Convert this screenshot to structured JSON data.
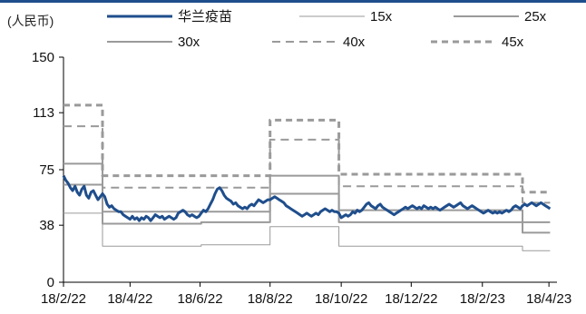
{
  "header": {
    "unit_label": "(人民币)"
  },
  "chart_data": {
    "type": "line",
    "ylabel": "(人民币)",
    "ylim": [
      0,
      150
    ],
    "yticks": [
      0,
      38,
      75,
      113,
      150
    ],
    "x_tick_labels": [
      "18/2/22",
      "18/4/22",
      "18/6/22",
      "18/8/22",
      "18/10/22",
      "18/12/22",
      "18/2/23",
      "18/4/23"
    ],
    "x_tick_days": [
      0,
      58,
      119,
      180,
      242,
      303,
      365,
      423
    ],
    "x_domain": [
      0,
      430
    ],
    "legend_position": "top",
    "series": [
      {
        "name": "华兰疫苗",
        "color": "#1f4e8c",
        "style": "solid",
        "width": 3,
        "points": [
          [
            0,
            71
          ],
          [
            2,
            68
          ],
          [
            4,
            66
          ],
          [
            6,
            63
          ],
          [
            8,
            61
          ],
          [
            10,
            64
          ],
          [
            12,
            60
          ],
          [
            14,
            58
          ],
          [
            16,
            62
          ],
          [
            18,
            64
          ],
          [
            20,
            58
          ],
          [
            22,
            56
          ],
          [
            24,
            60
          ],
          [
            26,
            61
          ],
          [
            28,
            58
          ],
          [
            30,
            55
          ],
          [
            32,
            57
          ],
          [
            34,
            59
          ],
          [
            36,
            57
          ],
          [
            38,
            52
          ],
          [
            40,
            50
          ],
          [
            42,
            51
          ],
          [
            44,
            49
          ],
          [
            46,
            48
          ],
          [
            48,
            47
          ],
          [
            50,
            47
          ],
          [
            52,
            45
          ],
          [
            54,
            44
          ],
          [
            56,
            43
          ],
          [
            58,
            42
          ],
          [
            60,
            44
          ],
          [
            62,
            42
          ],
          [
            64,
            43
          ],
          [
            66,
            41
          ],
          [
            68,
            43
          ],
          [
            70,
            42
          ],
          [
            72,
            44
          ],
          [
            74,
            43
          ],
          [
            76,
            41
          ],
          [
            78,
            43
          ],
          [
            80,
            45
          ],
          [
            82,
            44
          ],
          [
            84,
            43
          ],
          [
            86,
            44
          ],
          [
            88,
            42
          ],
          [
            90,
            43
          ],
          [
            92,
            44
          ],
          [
            94,
            43
          ],
          [
            96,
            42
          ],
          [
            98,
            43
          ],
          [
            100,
            46
          ],
          [
            102,
            47
          ],
          [
            104,
            48
          ],
          [
            106,
            47
          ],
          [
            108,
            45
          ],
          [
            110,
            44
          ],
          [
            112,
            45
          ],
          [
            114,
            44
          ],
          [
            116,
            43
          ],
          [
            118,
            44
          ],
          [
            120,
            46
          ],
          [
            122,
            48
          ],
          [
            124,
            47
          ],
          [
            126,
            49
          ],
          [
            128,
            52
          ],
          [
            130,
            55
          ],
          [
            132,
            59
          ],
          [
            134,
            62
          ],
          [
            136,
            63
          ],
          [
            138,
            61
          ],
          [
            140,
            58
          ],
          [
            142,
            56
          ],
          [
            144,
            55
          ],
          [
            146,
            54
          ],
          [
            148,
            52
          ],
          [
            150,
            53
          ],
          [
            152,
            51
          ],
          [
            154,
            50
          ],
          [
            156,
            49
          ],
          [
            158,
            50
          ],
          [
            160,
            49
          ],
          [
            162,
            51
          ],
          [
            164,
            52
          ],
          [
            166,
            51
          ],
          [
            168,
            53
          ],
          [
            170,
            55
          ],
          [
            172,
            54
          ],
          [
            174,
            53
          ],
          [
            176,
            54
          ],
          [
            178,
            55
          ],
          [
            180,
            55
          ],
          [
            182,
            56
          ],
          [
            184,
            57
          ],
          [
            186,
            56
          ],
          [
            188,
            55
          ],
          [
            190,
            54
          ],
          [
            192,
            53
          ],
          [
            194,
            51
          ],
          [
            196,
            50
          ],
          [
            198,
            49
          ],
          [
            200,
            48
          ],
          [
            202,
            47
          ],
          [
            204,
            46
          ],
          [
            206,
            45
          ],
          [
            208,
            44
          ],
          [
            210,
            45
          ],
          [
            212,
            46
          ],
          [
            214,
            45
          ],
          [
            216,
            44
          ],
          [
            218,
            45
          ],
          [
            220,
            46
          ],
          [
            222,
            45
          ],
          [
            224,
            47
          ],
          [
            226,
            48
          ],
          [
            228,
            49
          ],
          [
            230,
            48
          ],
          [
            232,
            47
          ],
          [
            234,
            48
          ],
          [
            236,
            47
          ],
          [
            238,
            47
          ],
          [
            240,
            46
          ],
          [
            242,
            43
          ],
          [
            244,
            44
          ],
          [
            246,
            45
          ],
          [
            248,
            44
          ],
          [
            250,
            45
          ],
          [
            252,
            47
          ],
          [
            254,
            46
          ],
          [
            256,
            48
          ],
          [
            258,
            47
          ],
          [
            260,
            48
          ],
          [
            262,
            50
          ],
          [
            264,
            52
          ],
          [
            266,
            53
          ],
          [
            268,
            51
          ],
          [
            270,
            50
          ],
          [
            272,
            49
          ],
          [
            274,
            51
          ],
          [
            276,
            52
          ],
          [
            278,
            50
          ],
          [
            280,
            49
          ],
          [
            282,
            48
          ],
          [
            284,
            47
          ],
          [
            286,
            46
          ],
          [
            288,
            45
          ],
          [
            290,
            46
          ],
          [
            292,
            47
          ],
          [
            294,
            48
          ],
          [
            296,
            49
          ],
          [
            298,
            50
          ],
          [
            300,
            49
          ],
          [
            302,
            50
          ],
          [
            304,
            51
          ],
          [
            306,
            50
          ],
          [
            308,
            49
          ],
          [
            310,
            50
          ],
          [
            312,
            49
          ],
          [
            314,
            51
          ],
          [
            316,
            50
          ],
          [
            318,
            49
          ],
          [
            320,
            50
          ],
          [
            322,
            49
          ],
          [
            324,
            50
          ],
          [
            326,
            49
          ],
          [
            328,
            48
          ],
          [
            330,
            49
          ],
          [
            332,
            50
          ],
          [
            334,
            51
          ],
          [
            336,
            52
          ],
          [
            338,
            51
          ],
          [
            340,
            50
          ],
          [
            342,
            51
          ],
          [
            344,
            52
          ],
          [
            346,
            53
          ],
          [
            348,
            51
          ],
          [
            350,
            50
          ],
          [
            352,
            49
          ],
          [
            354,
            50
          ],
          [
            356,
            51
          ],
          [
            358,
            50
          ],
          [
            360,
            49
          ],
          [
            362,
            48
          ],
          [
            364,
            47
          ],
          [
            366,
            46
          ],
          [
            368,
            47
          ],
          [
            370,
            48
          ],
          [
            372,
            47
          ],
          [
            374,
            46
          ],
          [
            376,
            47
          ],
          [
            378,
            46
          ],
          [
            380,
            47
          ],
          [
            382,
            46
          ],
          [
            384,
            47
          ],
          [
            386,
            48
          ],
          [
            388,
            47
          ],
          [
            390,
            48
          ],
          [
            392,
            50
          ],
          [
            394,
            51
          ],
          [
            396,
            50
          ],
          [
            398,
            49
          ],
          [
            400,
            51
          ],
          [
            402,
            52
          ],
          [
            404,
            51
          ],
          [
            406,
            52
          ],
          [
            408,
            53
          ],
          [
            410,
            52
          ],
          [
            412,
            51
          ],
          [
            414,
            52
          ],
          [
            416,
            53
          ],
          [
            418,
            52
          ],
          [
            420,
            51
          ],
          [
            422,
            50
          ],
          [
            424,
            49
          ]
        ]
      },
      {
        "name": "15x",
        "color": "#9a9a9a",
        "style": "solid",
        "width": 1,
        "points": [
          [
            0,
            46
          ],
          [
            34,
            46
          ],
          [
            34,
            24
          ],
          [
            120,
            24
          ],
          [
            120,
            25
          ],
          [
            180,
            25
          ],
          [
            180,
            37
          ],
          [
            240,
            37
          ],
          [
            240,
            24
          ],
          [
            365,
            24
          ],
          [
            365,
            24
          ],
          [
            400,
            24
          ],
          [
            400,
            21
          ],
          [
            424,
            21
          ]
        ]
      },
      {
        "name": "25x",
        "color": "#9a9a9a",
        "style": "solid",
        "width": 2,
        "points": [
          [
            0,
            65
          ],
          [
            34,
            65
          ],
          [
            34,
            39
          ],
          [
            120,
            39
          ],
          [
            120,
            40
          ],
          [
            180,
            40
          ],
          [
            180,
            59
          ],
          [
            240,
            59
          ],
          [
            240,
            40
          ],
          [
            400,
            40
          ],
          [
            400,
            33
          ],
          [
            424,
            33
          ]
        ]
      },
      {
        "name": "30x",
        "color": "#9a9a9a",
        "style": "solid",
        "width": 2,
        "points": [
          [
            0,
            79
          ],
          [
            34,
            79
          ],
          [
            34,
            47
          ],
          [
            180,
            47
          ],
          [
            180,
            71
          ],
          [
            240,
            71
          ],
          [
            240,
            48
          ],
          [
            400,
            48
          ],
          [
            400,
            40
          ],
          [
            424,
            40
          ]
        ]
      },
      {
        "name": "40x",
        "color": "#9a9a9a",
        "style": "dashed",
        "width": 2,
        "points": [
          [
            0,
            104
          ],
          [
            34,
            104
          ],
          [
            34,
            63
          ],
          [
            180,
            63
          ],
          [
            180,
            95
          ],
          [
            240,
            95
          ],
          [
            240,
            64
          ],
          [
            400,
            64
          ],
          [
            400,
            53
          ],
          [
            424,
            53
          ]
        ]
      },
      {
        "name": "45x",
        "color": "#9a9a9a",
        "style": "dashed",
        "width": 3,
        "points": [
          [
            0,
            118
          ],
          [
            34,
            118
          ],
          [
            34,
            71
          ],
          [
            180,
            71
          ],
          [
            180,
            108
          ],
          [
            240,
            108
          ],
          [
            240,
            72
          ],
          [
            400,
            72
          ],
          [
            400,
            60
          ],
          [
            424,
            60
          ]
        ]
      }
    ]
  }
}
